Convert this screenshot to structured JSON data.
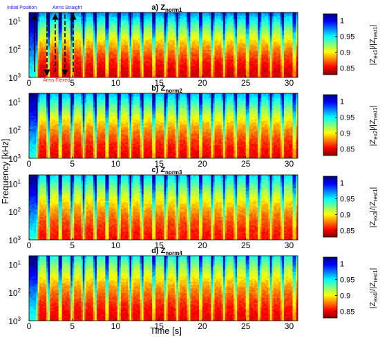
{
  "shared": {
    "ylabel": "Frequency [kHz]",
    "xlabel": "Time [s]",
    "x_ticks": [
      "0",
      "5",
      "10",
      "15",
      "20",
      "25",
      "30"
    ],
    "y_ticks": [
      {
        "base": "10",
        "exp": "1"
      },
      {
        "base": "10",
        "exp": "2"
      },
      {
        "base": "10",
        "exp": "3"
      }
    ],
    "colorbar_ticks": [
      "1",
      "0.95",
      "0.9",
      "0.85"
    ],
    "colormap": [
      "#00007f",
      "#0000ff",
      "#007fff",
      "#00ffff",
      "#7fff7f",
      "#ffff00",
      "#ff7f00",
      "#ff0000",
      "#7f0000"
    ]
  },
  "annotations": {
    "initial_position": "Initial Position",
    "arms_straight": "Arms Straight",
    "arms_flexed": "Arms Flexed",
    "initial_color": "#1a1aff",
    "straight_color": "#1a1aff",
    "flexed_color": "#ff2020"
  },
  "chart_data": [
    {
      "type": "heatmap",
      "title_prefix": "a) Z",
      "title_sub": "norm1",
      "cbar_label": {
        "p1": "|Z",
        "s1": "ex1",
        "p2": "|/|Z",
        "s2": "rest1",
        "p3": "|"
      },
      "xlim": [
        0,
        31
      ],
      "ylim_khz": [
        1000,
        5
      ],
      "yscale": "log",
      "clim": [
        0.83,
        1.02
      ],
      "cycle_period_s": 1.35,
      "cycles": 23,
      "baseline_value": 0.845,
      "peak_value": 0.985
    },
    {
      "type": "heatmap",
      "title_prefix": "b) Z",
      "title_sub": "norm2",
      "cbar_label": {
        "p1": "|Z",
        "s1": "ex2",
        "p2": "|/|Z",
        "s2": "rest1",
        "p3": "|"
      },
      "xlim": [
        0,
        31
      ],
      "ylim_khz": [
        1000,
        5
      ],
      "yscale": "log",
      "clim": [
        0.83,
        1.02
      ],
      "cycle_period_s": 1.35,
      "cycles": 23,
      "baseline_value": 0.85,
      "peak_value": 0.975
    },
    {
      "type": "heatmap",
      "title_prefix": "c) Z",
      "title_sub": "norm3",
      "cbar_label": {
        "p1": "|Z",
        "s1": "ex3",
        "p2": "|/|Z",
        "s2": "rest1",
        "p3": "|"
      },
      "xlim": [
        0,
        31
      ],
      "ylim_khz": [
        1000,
        5
      ],
      "yscale": "log",
      "clim": [
        0.83,
        1.02
      ],
      "cycle_period_s": 1.35,
      "cycles": 23,
      "baseline_value": 0.855,
      "peak_value": 0.965
    },
    {
      "type": "heatmap",
      "title_prefix": "d) Z",
      "title_sub": "norm4",
      "cbar_label": {
        "p1": "|Z",
        "s1": "ex4",
        "p2": "|/|Z",
        "s2": "rest1",
        "p3": "|"
      },
      "xlim": [
        0,
        31
      ],
      "ylim_khz": [
        1000,
        5
      ],
      "yscale": "log",
      "clim": [
        0.83,
        1.02
      ],
      "cycle_period_s": 1.35,
      "cycles": 23,
      "baseline_value": 0.85,
      "peak_value": 0.955
    }
  ]
}
